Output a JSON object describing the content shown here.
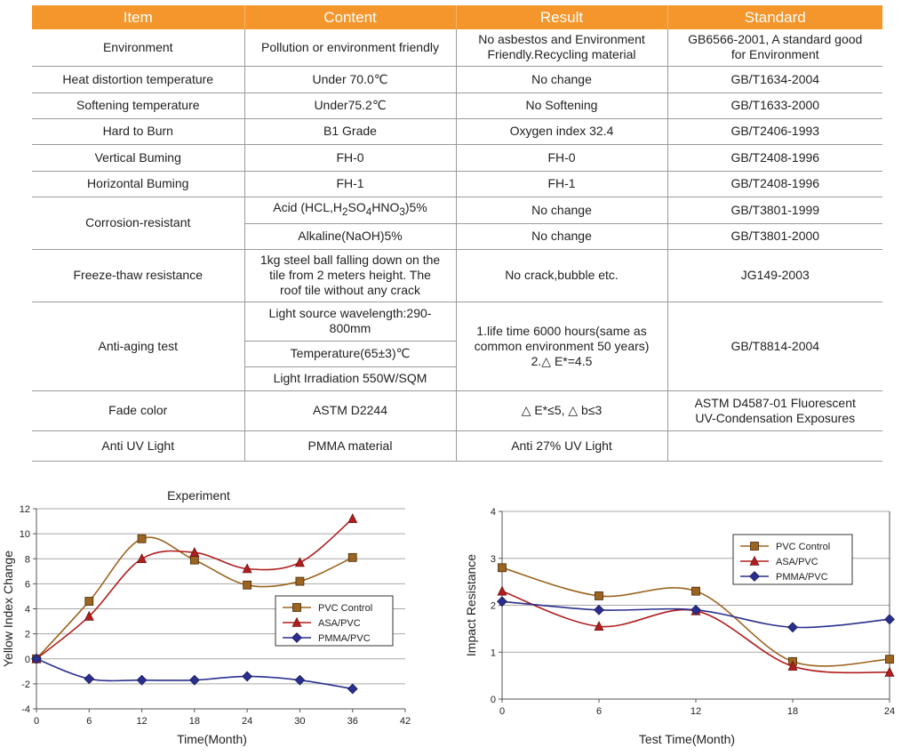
{
  "table": {
    "headers": [
      "Item",
      "Content",
      "Result",
      "Standard"
    ],
    "environment": {
      "item": "Environment",
      "content": "Pollution or environment friendly",
      "result_l1": "No asbestos and Environment",
      "result_l2": "Friendly.Recycling material",
      "standard_l1": "GB6566-2001, A standard good",
      "standard_l2": "for Environment"
    },
    "heat": {
      "item": "Heat distortion temperature",
      "content": "Under 70.0℃",
      "result": "No change",
      "standard": "GB/T1634-2004"
    },
    "soft": {
      "item": "Softening temperature",
      "content": "Under75.2℃",
      "result": "No Softening",
      "standard": "GB/T1633-2000"
    },
    "burn": {
      "item": "Hard to Burn",
      "content": "B1 Grade",
      "result": "Oxygen index 32.4",
      "standard": "GB/T2406-1993"
    },
    "vert": {
      "item": "Vertical Buming",
      "content": "FH-0",
      "result": "FH-0",
      "standard": "GB/T2408-1996"
    },
    "horiz": {
      "item": "Horizontal Buming",
      "content": "FH-1",
      "result": "FH-1",
      "standard": "GB/T2408-1996"
    },
    "corrosion": {
      "item": "Corrosion-resistant",
      "acid_pre": "Acid (HCL,H",
      "acid_s1": "2",
      "acid_mid1": "SO",
      "acid_s2": "4",
      "acid_mid2": "HNO",
      "acid_s3": "3",
      "acid_post": ")5%",
      "acid_result": "No change",
      "acid_standard": "GB/T3801-1999",
      "alk_content": "Alkaline(NaOH)5%",
      "alk_result": "No change",
      "alk_standard": "GB/T3801-2000"
    },
    "freeze": {
      "item": "Freeze-thaw resistance",
      "content_l1": "1kg steel ball falling down on the",
      "content_l2": "tile from 2 meters height. The",
      "content_l3": "roof tile without any crack",
      "result": "No crack,bubble etc.",
      "standard": "JG149-2003"
    },
    "aging": {
      "item": "Anti-aging test",
      "c1_l1": "Light source wavelength:290-",
      "c1_l2": "800mm",
      "c2": "Temperature(65±3)℃",
      "c3": "Light Irradiation 550W/SQM",
      "result_l1": "1.life time 6000 hours(same as",
      "result_l2": "common environment 50 years)",
      "result_l3": "2.△ E*=4.5",
      "standard": "GB/T8814-2004"
    },
    "fade": {
      "item": "Fade color",
      "content": "ASTM D2244",
      "result": "△ E*≤5, △ b≤3",
      "standard_l1": "ASTM D4587-01 Fluorescent",
      "standard_l2": "UV-Condensation Exposures"
    },
    "uv": {
      "item": "Anti UV Light",
      "content": "PMMA material",
      "result": "Anti 27% UV Light",
      "standard": ""
    }
  },
  "colors": {
    "header_bg": "#f4962b",
    "pvc": "#9b6420",
    "asa": "#b01e1e",
    "pmma": "#2a2e8c",
    "grid": "#a8a8a8"
  },
  "chart_data": [
    {
      "type": "line",
      "title": "Experiment",
      "xlabel": "Time(Month)",
      "ylabel": "Yellow Index Change",
      "x": [
        0,
        6,
        12,
        18,
        24,
        30,
        36
      ],
      "xticks": [
        0,
        6,
        12,
        18,
        24,
        30,
        36,
        42
      ],
      "xlim": [
        0,
        42
      ],
      "ylim": [
        -4,
        12
      ],
      "yticks": [
        -4,
        -2,
        0,
        2,
        4,
        6,
        8,
        10,
        12
      ],
      "legend_position": "center-right",
      "series": [
        {
          "name": "PVC Control",
          "marker": "square",
          "values": [
            0,
            4.6,
            9.6,
            7.9,
            5.9,
            6.2,
            8.1
          ]
        },
        {
          "name": "ASA/PVC",
          "marker": "triangle",
          "values": [
            0,
            3.4,
            8.0,
            8.5,
            7.2,
            7.7,
            11.2
          ]
        },
        {
          "name": "PMMA/PVC",
          "marker": "diamond",
          "values": [
            0,
            -1.6,
            -1.7,
            -1.7,
            -1.4,
            -1.7,
            -2.4
          ]
        }
      ]
    },
    {
      "type": "line",
      "title": "",
      "xlabel": "Test Time(Month)",
      "ylabel": "Impact Resistance",
      "x": [
        0,
        6,
        12,
        18,
        24
      ],
      "xticks": [
        0,
        6,
        12,
        18,
        24
      ],
      "xlim": [
        0,
        24
      ],
      "ylim": [
        0,
        4
      ],
      "yticks": [
        0,
        1,
        2,
        3,
        4
      ],
      "legend_position": "top-right",
      "series": [
        {
          "name": "PVC Control",
          "marker": "square",
          "values": [
            2.8,
            2.2,
            2.3,
            0.8,
            0.85
          ]
        },
        {
          "name": "ASA/PVC",
          "marker": "triangle",
          "values": [
            2.3,
            1.55,
            1.88,
            0.7,
            0.57
          ]
        },
        {
          "name": "PMMA/PVC",
          "marker": "diamond",
          "values": [
            2.08,
            1.9,
            1.9,
            1.53,
            1.7
          ]
        }
      ]
    }
  ]
}
